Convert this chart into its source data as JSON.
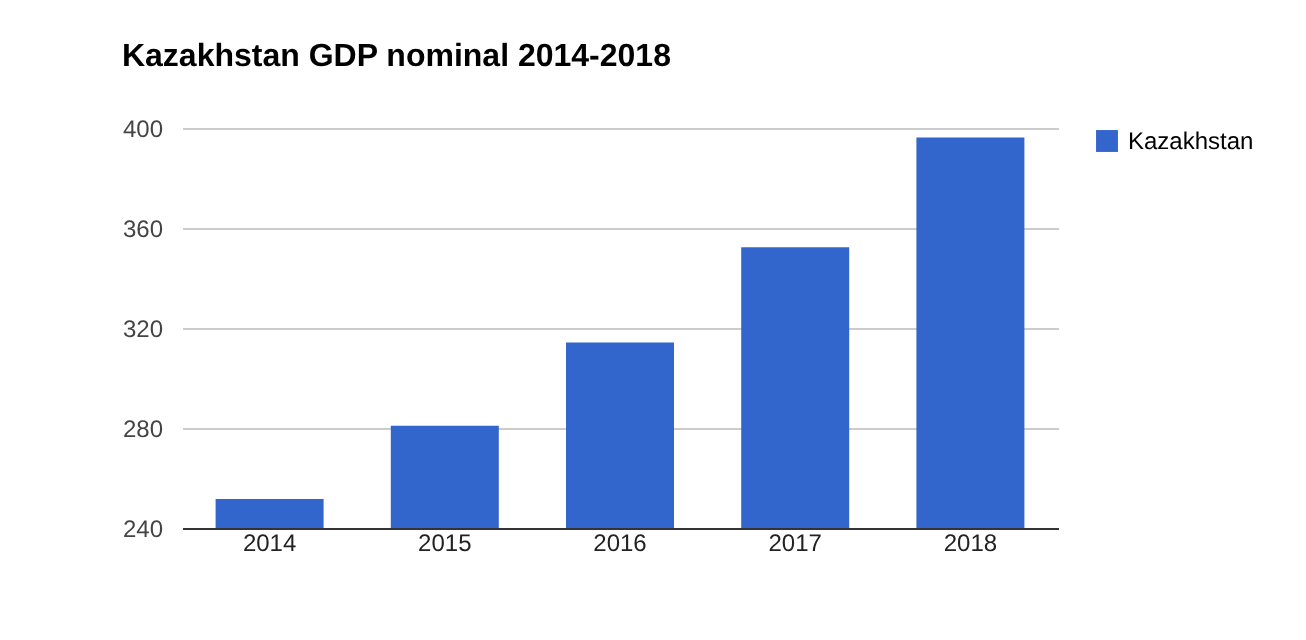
{
  "chart_data": {
    "type": "bar",
    "title": "Kazakhstan GDP nominal 2014-2018",
    "categories": [
      "2014",
      "2015",
      "2016",
      "2017",
      "2018"
    ],
    "series": [
      {
        "name": "Kazakhstan",
        "color": "#3366cc",
        "values": [
          251.6,
          280.9,
          314.2,
          352.3,
          396.2
        ]
      }
    ],
    "ylim": [
      240,
      400
    ],
    "yticks": [
      240,
      280,
      320,
      360,
      400
    ],
    "grid": "y",
    "legend": "right"
  }
}
